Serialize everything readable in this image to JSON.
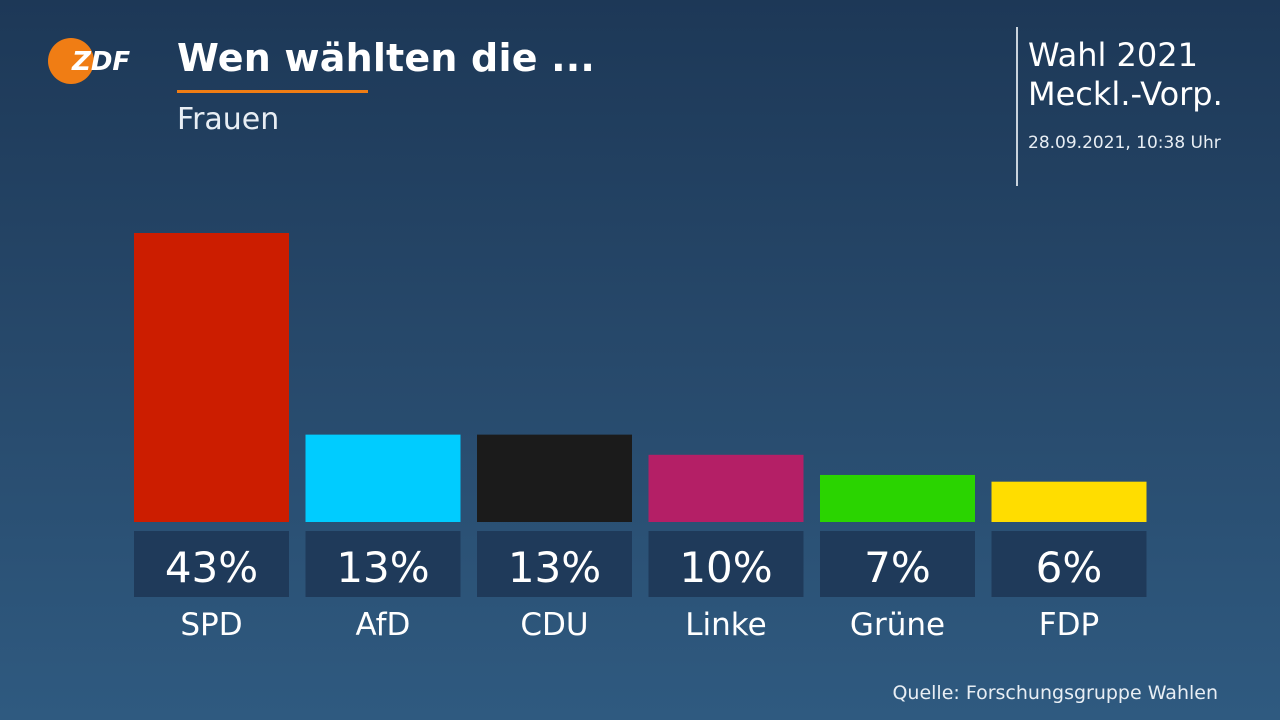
{
  "brand": {
    "logo_text": "ZDF",
    "logo_color": "#f07d14"
  },
  "header": {
    "title": "Wen wählten die ...",
    "subtitle": "Frauen",
    "accent_color": "#f07d14"
  },
  "election": {
    "line1": "Wahl 2021",
    "line2": "Meckl.-Vorp.",
    "timestamp": "28.09.2021, 10:38 Uhr"
  },
  "footer": {
    "source": "Quelle: Forschungsgruppe Wahlen"
  },
  "chart_data": {
    "type": "bar",
    "title": "Wen wählten die ...",
    "subtitle": "Frauen",
    "categories": [
      "SPD",
      "AfD",
      "CDU",
      "Linke",
      "Grüne",
      "FDP"
    ],
    "values": [
      43,
      13,
      13,
      10,
      7,
      6
    ],
    "value_labels": [
      "43%",
      "13%",
      "13%",
      "10%",
      "7%",
      "6%"
    ],
    "unit": "%",
    "colors": [
      "#cc1d00",
      "#00ccff",
      "#1b1b1b",
      "#b41f66",
      "#2ad400",
      "#ffdd00"
    ],
    "label_box_color": "#1f3a5a",
    "ylim": [
      0,
      43
    ],
    "grid": false,
    "legend": "none"
  }
}
